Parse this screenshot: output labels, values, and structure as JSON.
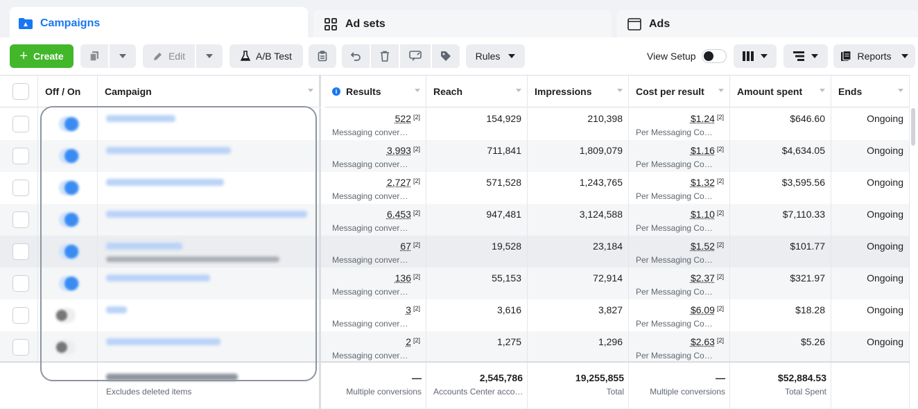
{
  "tabs": [
    {
      "label": "Campaigns"
    },
    {
      "label": "Ad sets"
    },
    {
      "label": "Ads"
    }
  ],
  "toolbar": {
    "create": "Create",
    "edit": "Edit",
    "ab_test": "A/B Test",
    "rules": "Rules",
    "view_setup": "View Setup",
    "reports": "Reports"
  },
  "columns": {
    "toggle": "Off / On",
    "campaign": "Campaign",
    "results": "Results",
    "reach": "Reach",
    "impressions": "Impressions",
    "cost_per_result": "Cost per result",
    "amount_spent": "Amount spent",
    "ends": "Ends"
  },
  "rows": [
    {
      "results": "522",
      "results_sup": "[2]",
      "results_sub": "Messaging conver…",
      "reach": "154,929",
      "impressions": "210,398",
      "cpr": "$1.24",
      "cpr_sup": "[2]",
      "cpr_sub": "Per Messaging Co…",
      "spent": "$646.60",
      "ends": "Ongoing",
      "on": true
    },
    {
      "results": "3,993",
      "results_sup": "[2]",
      "results_sub": "Messaging conver…",
      "reach": "711,841",
      "impressions": "1,809,079",
      "cpr": "$1.16",
      "cpr_sup": "[2]",
      "cpr_sub": "Per Messaging Co…",
      "spent": "$4,634.05",
      "ends": "Ongoing",
      "on": true
    },
    {
      "results": "2,727",
      "results_sup": "[2]",
      "results_sub": "Messaging conver…",
      "reach": "571,528",
      "impressions": "1,243,765",
      "cpr": "$1.32",
      "cpr_sup": "[2]",
      "cpr_sub": "Per Messaging Co…",
      "spent": "$3,595.56",
      "ends": "Ongoing",
      "on": true
    },
    {
      "results": "6,453",
      "results_sup": "[2]",
      "results_sub": "Messaging conver…",
      "reach": "947,481",
      "impressions": "3,124,588",
      "cpr": "$1.10",
      "cpr_sup": "[2]",
      "cpr_sub": "Per Messaging Co…",
      "spent": "$7,110.33",
      "ends": "Ongoing",
      "on": true
    },
    {
      "results": "67",
      "results_sup": "[2]",
      "results_sub": "Messaging conver…",
      "reach": "19,528",
      "impressions": "23,184",
      "cpr": "$1.52",
      "cpr_sup": "[2]",
      "cpr_sub": "Per Messaging Co…",
      "spent": "$101.77",
      "ends": "Ongoing",
      "on": true
    },
    {
      "results": "136",
      "results_sup": "[2]",
      "results_sub": "Messaging conver…",
      "reach": "55,153",
      "impressions": "72,914",
      "cpr": "$2.37",
      "cpr_sup": "[2]",
      "cpr_sub": "Per Messaging Co…",
      "spent": "$321.97",
      "ends": "Ongoing",
      "on": true
    },
    {
      "results": "3",
      "results_sup": "[2]",
      "results_sub": "Messaging conver…",
      "reach": "3,616",
      "impressions": "3,827",
      "cpr": "$6.09",
      "cpr_sup": "[2]",
      "cpr_sub": "Per Messaging Co…",
      "spent": "$18.28",
      "ends": "Ongoing",
      "on": false
    },
    {
      "results": "2",
      "results_sup": "[2]",
      "results_sub": "Messaging conver…",
      "reach": "1,275",
      "impressions": "1,296",
      "cpr": "$2.63",
      "cpr_sup": "[2]",
      "cpr_sub": "Per Messaging Co…",
      "spent": "$5.26",
      "ends": "Ongoing",
      "on": false
    }
  ],
  "footer": {
    "campaign_sub": "Excludes deleted items",
    "results": "—",
    "results_sub": "Multiple conversions",
    "reach": "2,545,786",
    "reach_sub": "Accounts Center acco…",
    "impressions": "19,255,855",
    "impressions_sub": "Total",
    "cpr": "—",
    "cpr_sub": "Multiple conversions",
    "spent": "$52,884.53",
    "spent_sub": "Total Spent"
  },
  "colors": {
    "accent": "#1877f2",
    "create": "#42b72a"
  }
}
